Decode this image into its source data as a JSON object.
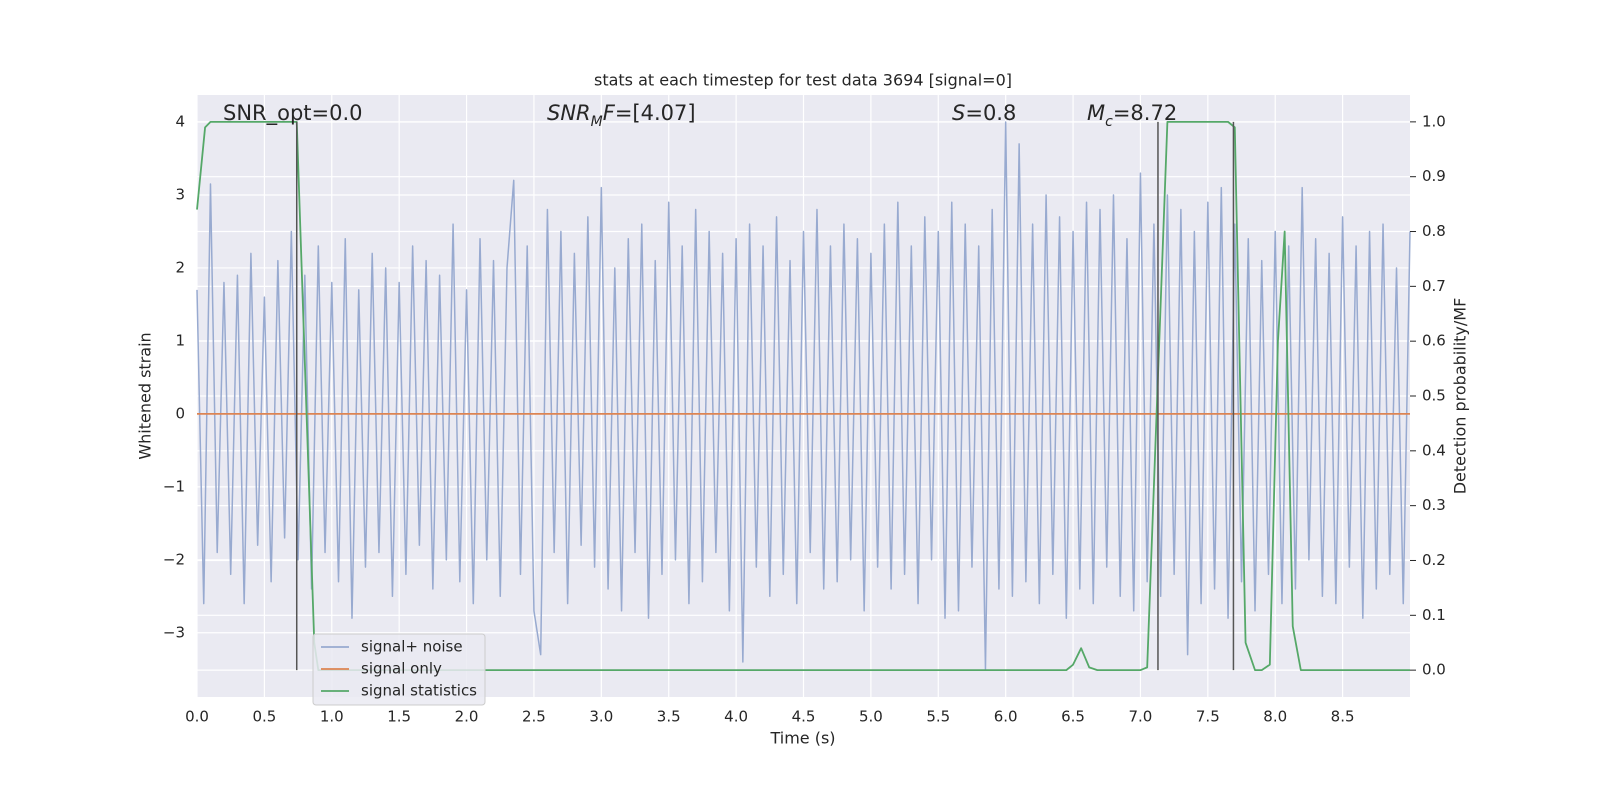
{
  "chart_data": {
    "type": "line",
    "title": "stats at each timestep for test data 3694 [signal=0]",
    "xlabel": "Time (s)",
    "ylabel": "Whitened strain",
    "y2label": "Detection probability/MF",
    "annotations": [
      [
        {
          "text": "SNR_opt=0.0"
        }
      ],
      [
        {
          "text": "SNR",
          "italic": true
        },
        {
          "text": "M",
          "italic": true,
          "sub": true
        },
        {
          "text": "F",
          "italic": true
        },
        {
          "text": "=[4.07]"
        }
      ],
      [
        {
          "text": "S",
          "italic": true
        },
        {
          "text": "=0.8"
        }
      ],
      [
        {
          "text": "M",
          "italic": true
        },
        {
          "text": "c",
          "italic": true,
          "sub": true
        },
        {
          "text": "=8.72"
        }
      ]
    ],
    "xlim": [
      0,
      9
    ],
    "ylim": [
      -3.88,
      4.37
    ],
    "y2lim": [
      -0.049,
      1.049
    ],
    "xticks": [
      {
        "value": 0,
        "label": "0.0"
      },
      {
        "value": 0.5,
        "label": "0.5"
      },
      {
        "value": 1,
        "label": "1.0"
      },
      {
        "value": 1.5,
        "label": "1.5"
      },
      {
        "value": 2,
        "label": "2.0"
      },
      {
        "value": 2.5,
        "label": "2.5"
      },
      {
        "value": 3,
        "label": "3.0"
      },
      {
        "value": 3.5,
        "label": "3.5"
      },
      {
        "value": 4,
        "label": "4.0"
      },
      {
        "value": 4.5,
        "label": "4.5"
      },
      {
        "value": 5,
        "label": "5.0"
      },
      {
        "value": 5.5,
        "label": "5.5"
      },
      {
        "value": 6,
        "label": "6.0"
      },
      {
        "value": 6.5,
        "label": "6.5"
      },
      {
        "value": 7,
        "label": "7.0"
      },
      {
        "value": 7.5,
        "label": "7.5"
      },
      {
        "value": 8,
        "label": "8.0"
      },
      {
        "value": 8.5,
        "label": "8.5"
      }
    ],
    "yticks": [
      {
        "value": -3,
        "label": "−3"
      },
      {
        "value": -2,
        "label": "−2"
      },
      {
        "value": -1,
        "label": "−1"
      },
      0,
      1,
      2,
      3,
      4
    ],
    "y2ticks": [
      {
        "value": 0,
        "label": "0.0"
      },
      {
        "value": 0.1,
        "label": "0.1"
      },
      {
        "value": 0.2,
        "label": "0.2"
      },
      {
        "value": 0.3,
        "label": "0.3"
      },
      {
        "value": 0.4,
        "label": "0.4"
      },
      {
        "value": 0.5,
        "label": "0.5"
      },
      {
        "value": 0.6,
        "label": "0.6"
      },
      {
        "value": 0.7,
        "label": "0.7"
      },
      {
        "value": 0.8,
        "label": "0.8"
      },
      {
        "value": 0.9,
        "label": "0.9"
      },
      {
        "value": 1,
        "label": "1.0"
      }
    ],
    "grid": true,
    "legend": "lower left",
    "vlines": [
      0.74,
      7.13,
      7.69
    ],
    "vline_range": [
      0,
      1
    ],
    "vline_color": "#555555",
    "series": [
      {
        "name": "signal+ noise",
        "color": "#98aad0",
        "x": [
          0,
          0.05,
          0.1,
          0.15,
          0.2,
          0.25,
          0.3,
          0.35,
          0.4,
          0.45,
          0.5,
          0.55,
          0.6,
          0.65,
          0.7,
          0.75,
          0.8,
          0.85,
          0.9,
          0.95,
          1,
          1.05,
          1.1,
          1.15,
          1.2,
          1.25,
          1.3,
          1.35,
          1.4,
          1.45,
          1.5,
          1.55,
          1.6,
          1.65,
          1.7,
          1.75,
          1.8,
          1.85,
          1.9,
          1.95,
          2,
          2.05,
          2.1,
          2.15,
          2.2,
          2.25,
          2.3,
          2.35,
          2.4,
          2.45,
          2.5,
          2.55,
          2.6,
          2.65,
          2.7,
          2.75,
          2.8,
          2.85,
          2.9,
          2.95,
          3,
          3.05,
          3.1,
          3.15,
          3.2,
          3.25,
          3.3,
          3.35,
          3.4,
          3.45,
          3.5,
          3.55,
          3.6,
          3.65,
          3.7,
          3.75,
          3.8,
          3.85,
          3.9,
          3.95,
          4,
          4.05,
          4.1,
          4.15,
          4.2,
          4.25,
          4.3,
          4.35,
          4.4,
          4.45,
          4.5,
          4.55,
          4.6,
          4.65,
          4.7,
          4.75,
          4.8,
          4.85,
          4.9,
          4.95,
          5,
          5.05,
          5.1,
          5.15,
          5.2,
          5.25,
          5.3,
          5.35,
          5.4,
          5.45,
          5.5,
          5.55,
          5.6,
          5.65,
          5.7,
          5.75,
          5.8,
          5.85,
          5.9,
          5.95,
          6,
          6.05,
          6.1,
          6.15,
          6.2,
          6.25,
          6.3,
          6.35,
          6.4,
          6.45,
          6.5,
          6.55,
          6.6,
          6.65,
          6.7,
          6.75,
          6.8,
          6.85,
          6.9,
          6.95,
          7,
          7.05,
          7.1,
          7.15,
          7.2,
          7.25,
          7.3,
          7.35,
          7.4,
          7.45,
          7.5,
          7.55,
          7.6,
          7.65,
          7.7,
          7.75,
          7.8,
          7.85,
          7.9,
          7.95,
          8,
          8.05,
          8.1,
          8.15,
          8.2,
          8.25,
          8.3,
          8.35,
          8.4,
          8.45,
          8.5,
          8.55,
          8.6,
          8.65,
          8.7,
          8.75,
          8.8,
          8.85,
          8.9,
          8.95,
          9
        ],
        "values": [
          1.7,
          -2.6,
          3.15,
          -1.9,
          1.8,
          -2.2,
          1.9,
          -2.6,
          2.2,
          -1.8,
          1.6,
          -2.3,
          2.1,
          -1.7,
          2.5,
          -2.0,
          1.9,
          -2.4,
          2.3,
          -1.9,
          1.8,
          -2.3,
          2.4,
          -2.8,
          1.7,
          -2.1,
          2.2,
          -1.9,
          2.0,
          -2.5,
          1.8,
          -2.2,
          2.3,
          -1.8,
          2.1,
          -2.4,
          1.9,
          -2.0,
          2.6,
          -2.3,
          1.7,
          -2.6,
          2.4,
          -2.0,
          2.1,
          -2.5,
          2.0,
          3.2,
          -2.2,
          2.3,
          -2.7,
          -3.3,
          2.8,
          -1.9,
          2.5,
          -2.6,
          2.2,
          -1.8,
          2.7,
          -2.1,
          3.1,
          -2.4,
          2.0,
          -2.7,
          2.4,
          -1.9,
          2.6,
          -2.8,
          2.1,
          -2.2,
          2.9,
          -2.0,
          2.3,
          -2.6,
          2.8,
          -2.3,
          2.5,
          -1.9,
          2.2,
          -2.7,
          2.4,
          -3.4,
          2.6,
          -2.1,
          2.3,
          -2.5,
          2.7,
          -2.2,
          2.1,
          -2.6,
          2.5,
          -1.9,
          2.8,
          -2.4,
          2.3,
          -2.3,
          2.6,
          -2.0,
          2.4,
          -2.7,
          2.2,
          -2.1,
          2.6,
          -2.4,
          2.9,
          -2.2,
          2.3,
          -2.6,
          2.7,
          -2.0,
          2.5,
          -2.8,
          2.9,
          -2.7,
          2.6,
          -2.1,
          2.3,
          -3.5,
          2.8,
          -2.4,
          4.0,
          -2.5,
          3.7,
          -2.3,
          2.6,
          -2.6,
          3.0,
          -2.2,
          2.7,
          -2.8,
          2.5,
          -2.4,
          2.9,
          -2.6,
          2.8,
          -2.1,
          3.0,
          -2.5,
          2.4,
          -2.7,
          3.3,
          -2.3,
          2.6,
          -2.5,
          3.0,
          -2.2,
          2.8,
          -3.3,
          2.5,
          -2.6,
          2.9,
          -2.4,
          3.1,
          -2.8,
          2.6,
          -2.3,
          2.4,
          -2.7,
          2.1,
          -2.2,
          2.5,
          -2.6,
          2.3,
          -2.4,
          3.1,
          -2.0,
          2.4,
          -2.5,
          2.2,
          -2.6,
          2.7,
          -2.1,
          2.3,
          -2.8,
          2.5,
          -2.4,
          2.6,
          -2.2,
          2.0,
          -2.6,
          2.5
        ]
      },
      {
        "name": "signal only",
        "color": "#dd8452",
        "x": [
          0,
          9
        ],
        "values": [
          0,
          0
        ]
      },
      {
        "name": "signal statistics",
        "color": "#55a868",
        "axis": "y2",
        "x": [
          0,
          0.06,
          0.1,
          0.7,
          0.74,
          0.87,
          0.9,
          6.45,
          6.5,
          6.56,
          6.62,
          6.68,
          7.0,
          7.05,
          7.2,
          7.65,
          7.7,
          7.78,
          7.85,
          7.9,
          7.96,
          8.02,
          8.07,
          8.13,
          8.19,
          9.0
        ],
        "values": [
          0.84,
          0.99,
          1.0,
          1.0,
          1.0,
          0.05,
          0.0,
          0.0,
          0.01,
          0.04,
          0.005,
          0.0,
          0.0,
          0.005,
          1.0,
          1.0,
          0.99,
          0.05,
          0.0,
          0.0,
          0.01,
          0.6,
          0.8,
          0.08,
          0.0,
          0.0
        ]
      }
    ]
  }
}
